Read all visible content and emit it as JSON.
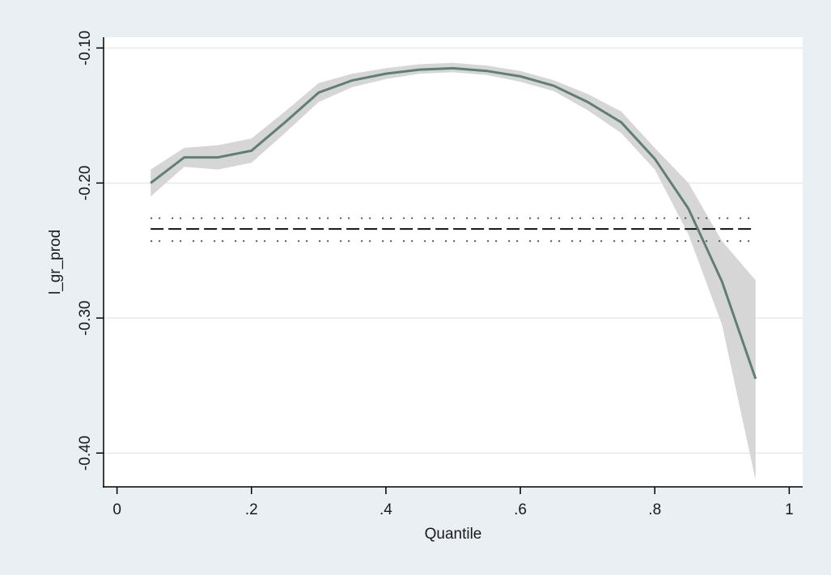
{
  "chart_data": {
    "type": "line",
    "title": "",
    "xlabel": "Quantile",
    "ylabel": "l_gr_prod",
    "xlim": [
      -0.02,
      1.02
    ],
    "ylim": [
      -0.425,
      -0.092
    ],
    "x_ticks": [
      {
        "value": 0,
        "label": "0"
      },
      {
        "value": 0.2,
        "label": ".2"
      },
      {
        "value": 0.4,
        "label": ".4"
      },
      {
        "value": 0.6,
        "label": ".6"
      },
      {
        "value": 0.8,
        "label": ".8"
      },
      {
        "value": 1,
        "label": "1"
      }
    ],
    "y_ticks": [
      {
        "value": -0.1,
        "label": "-0.10"
      },
      {
        "value": -0.2,
        "label": "-0.20"
      },
      {
        "value": -0.3,
        "label": "-0.30"
      },
      {
        "value": -0.4,
        "label": "-0.40"
      }
    ],
    "grid": "horizontal",
    "legend": "none",
    "series": [
      {
        "role": "quantile estimate with confidence band",
        "color": "#5f7f72",
        "band_color": "#d6d6d6",
        "x": [
          0.05,
          0.1,
          0.15,
          0.2,
          0.25,
          0.3,
          0.35,
          0.4,
          0.45,
          0.5,
          0.55,
          0.6,
          0.65,
          0.7,
          0.75,
          0.8,
          0.85,
          0.9,
          0.95
        ],
        "y": [
          -0.2,
          -0.181,
          -0.181,
          -0.176,
          -0.155,
          -0.133,
          -0.124,
          -0.119,
          -0.116,
          -0.115,
          -0.117,
          -0.121,
          -0.128,
          -0.14,
          -0.155,
          -0.182,
          -0.219,
          -0.273,
          -0.345
        ],
        "lower": [
          -0.21,
          -0.188,
          -0.19,
          -0.185,
          -0.163,
          -0.14,
          -0.129,
          -0.123,
          -0.119,
          -0.118,
          -0.12,
          -0.125,
          -0.132,
          -0.146,
          -0.163,
          -0.19,
          -0.238,
          -0.305,
          -0.42
        ],
        "upper": [
          -0.19,
          -0.174,
          -0.172,
          -0.167,
          -0.147,
          -0.126,
          -0.119,
          -0.115,
          -0.112,
          -0.111,
          -0.113,
          -0.117,
          -0.124,
          -0.134,
          -0.147,
          -0.174,
          -0.2,
          -0.243,
          -0.272
        ]
      },
      {
        "role": "OLS estimate (dashed)",
        "color": "#111111",
        "x": [
          0.05,
          0.95
        ],
        "y": [
          -0.234,
          -0.234
        ]
      },
      {
        "role": "OLS confidence bounds (dotted)",
        "color": "#555555",
        "x": [
          0.05,
          0.95
        ],
        "lower": [
          -0.243,
          -0.243
        ],
        "upper": [
          -0.226,
          -0.226
        ]
      }
    ]
  },
  "colors": {
    "outer_background": "#e9eff2",
    "plot_background": "#ffffff",
    "gridline": "#e4ebee"
  }
}
